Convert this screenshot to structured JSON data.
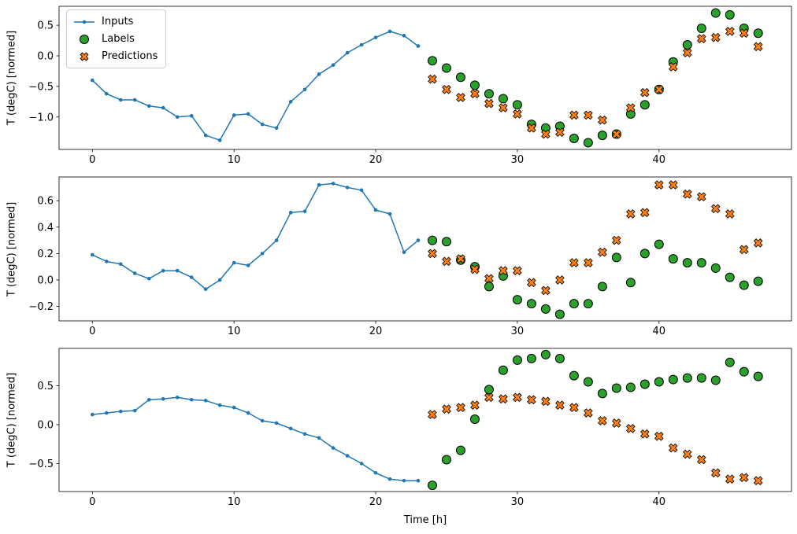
{
  "figure": {
    "xlabel": "Time [h]",
    "ylabel": "T (degC) [normed]",
    "background": "#ffffff",
    "colors": {
      "inputs": "#1f77b4",
      "labels": "#2ca02c",
      "predictions": "#ff7f0e",
      "marker_edge": "#000000",
      "legend_border": "#cccccc"
    },
    "legend": {
      "position": "upper-left",
      "items": [
        "Inputs",
        "Labels",
        "Predictions"
      ]
    }
  },
  "chart_data": [
    {
      "type": "line",
      "title": "",
      "ylabel": "T (degC) [normed]",
      "xlim": [
        -2.35,
        49.35
      ],
      "ylim": [
        -1.53,
        0.81
      ],
      "xticks": [
        0,
        10,
        20,
        30,
        40
      ],
      "yticks": [
        0.5,
        0.0,
        -0.5,
        -1.0
      ],
      "grid": false,
      "series": [
        {
          "name": "Inputs",
          "type": "line",
          "marker": "dot",
          "color": "#1f77b4",
          "x": [
            0,
            1,
            2,
            3,
            4,
            5,
            6,
            7,
            8,
            9,
            10,
            11,
            12,
            13,
            14,
            15,
            16,
            17,
            18,
            19,
            20,
            21,
            22,
            23
          ],
          "y": [
            -0.4,
            -0.62,
            -0.72,
            -0.72,
            -0.82,
            -0.85,
            -1.0,
            -0.98,
            -1.3,
            -1.38,
            -0.97,
            -0.95,
            -1.12,
            -1.18,
            -0.75,
            -0.55,
            -0.3,
            -0.15,
            0.05,
            0.18,
            0.3,
            0.4,
            0.33,
            0.16
          ]
        },
        {
          "name": "Labels",
          "type": "scatter",
          "marker": "circle",
          "color": "#2ca02c",
          "edge_color": "#000000",
          "x": [
            24,
            25,
            26,
            27,
            28,
            29,
            30,
            31,
            32,
            33,
            34,
            35,
            36,
            37,
            38,
            39,
            40,
            41,
            42,
            43,
            44,
            45,
            46,
            47
          ],
          "y": [
            -0.08,
            -0.2,
            -0.35,
            -0.48,
            -0.62,
            -0.7,
            -0.8,
            -1.12,
            -1.18,
            -1.15,
            -1.35,
            -1.42,
            -1.3,
            -1.28,
            -0.95,
            -0.8,
            -0.55,
            -0.1,
            0.18,
            0.45,
            0.7,
            0.67,
            0.45,
            0.37
          ]
        },
        {
          "name": "Predictions",
          "type": "scatter",
          "marker": "X",
          "color": "#ff7f0e",
          "edge_color": "#000000",
          "x": [
            24,
            25,
            26,
            27,
            28,
            29,
            30,
            31,
            32,
            33,
            34,
            35,
            36,
            37,
            38,
            39,
            40,
            41,
            42,
            43,
            44,
            45,
            46,
            47
          ],
          "y": [
            -0.38,
            -0.55,
            -0.68,
            -0.62,
            -0.78,
            -0.85,
            -0.95,
            -1.18,
            -1.28,
            -1.25,
            -0.97,
            -0.97,
            -1.05,
            -1.28,
            -0.85,
            -0.6,
            -0.55,
            -0.18,
            0.05,
            0.28,
            0.3,
            0.4,
            0.37,
            0.15
          ]
        }
      ]
    },
    {
      "type": "line",
      "title": "",
      "ylabel": "T (degC) [normed]",
      "xlim": [
        -2.35,
        49.35
      ],
      "ylim": [
        -0.31,
        0.78
      ],
      "xticks": [
        0,
        10,
        20,
        30,
        40
      ],
      "yticks": [
        0.6,
        0.4,
        0.2,
        0.0,
        -0.2
      ],
      "grid": false,
      "series": [
        {
          "name": "Inputs",
          "type": "line",
          "marker": "dot",
          "color": "#1f77b4",
          "x": [
            0,
            1,
            2,
            3,
            4,
            5,
            6,
            7,
            8,
            9,
            10,
            11,
            12,
            13,
            14,
            15,
            16,
            17,
            18,
            19,
            20,
            21,
            22,
            23
          ],
          "y": [
            0.19,
            0.14,
            0.12,
            0.05,
            0.01,
            0.07,
            0.07,
            0.02,
            -0.07,
            0.0,
            0.13,
            0.11,
            0.2,
            0.3,
            0.51,
            0.52,
            0.72,
            0.73,
            0.7,
            0.68,
            0.53,
            0.5,
            0.21,
            0.3
          ]
        },
        {
          "name": "Labels",
          "type": "scatter",
          "marker": "circle",
          "color": "#2ca02c",
          "edge_color": "#000000",
          "x": [
            24,
            25,
            26,
            27,
            28,
            29,
            30,
            31,
            32,
            33,
            34,
            35,
            36,
            37,
            38,
            39,
            40,
            41,
            42,
            43,
            44,
            45,
            46,
            47
          ],
          "y": [
            0.3,
            0.29,
            0.15,
            0.1,
            -0.05,
            0.03,
            -0.15,
            -0.18,
            -0.22,
            -0.26,
            -0.18,
            -0.18,
            -0.05,
            0.17,
            -0.02,
            0.2,
            0.27,
            0.16,
            0.13,
            0.13,
            0.09,
            0.02,
            -0.04,
            -0.01
          ]
        },
        {
          "name": "Predictions",
          "type": "scatter",
          "marker": "X",
          "color": "#ff7f0e",
          "edge_color": "#000000",
          "x": [
            24,
            25,
            26,
            27,
            28,
            29,
            30,
            31,
            32,
            33,
            34,
            35,
            36,
            37,
            38,
            39,
            40,
            41,
            42,
            43,
            44,
            45,
            46,
            47
          ],
          "y": [
            0.2,
            0.14,
            0.16,
            0.08,
            0.01,
            0.07,
            0.07,
            -0.02,
            -0.08,
            0.0,
            0.13,
            0.13,
            0.21,
            0.3,
            0.5,
            0.51,
            0.72,
            0.72,
            0.65,
            0.63,
            0.54,
            0.5,
            0.23,
            0.28
          ]
        }
      ]
    },
    {
      "type": "line",
      "title": "",
      "ylabel": "T (degC) [normed]",
      "xlabel": "Time [h]",
      "xlim": [
        -2.35,
        49.35
      ],
      "ylim": [
        -0.86,
        0.98
      ],
      "xticks": [
        0,
        10,
        20,
        30,
        40
      ],
      "yticks": [
        0.5,
        0.0,
        -0.5
      ],
      "grid": false,
      "series": [
        {
          "name": "Inputs",
          "type": "line",
          "marker": "dot",
          "color": "#1f77b4",
          "x": [
            0,
            1,
            2,
            3,
            4,
            5,
            6,
            7,
            8,
            9,
            10,
            11,
            12,
            13,
            14,
            15,
            16,
            17,
            18,
            19,
            20,
            21,
            22,
            23
          ],
          "y": [
            0.13,
            0.15,
            0.17,
            0.18,
            0.32,
            0.33,
            0.35,
            0.32,
            0.31,
            0.25,
            0.22,
            0.15,
            0.05,
            0.02,
            -0.05,
            -0.12,
            -0.17,
            -0.3,
            -0.4,
            -0.5,
            -0.62,
            -0.7,
            -0.72,
            -0.72
          ]
        },
        {
          "name": "Labels",
          "type": "scatter",
          "marker": "circle",
          "color": "#2ca02c",
          "edge_color": "#000000",
          "x": [
            24,
            25,
            26,
            27,
            28,
            29,
            30,
            31,
            32,
            33,
            34,
            35,
            36,
            37,
            38,
            39,
            40,
            41,
            42,
            43,
            44,
            45,
            46,
            47
          ],
          "y": [
            -0.78,
            -0.45,
            -0.33,
            0.07,
            0.45,
            0.7,
            0.83,
            0.85,
            0.9,
            0.85,
            0.63,
            0.55,
            0.4,
            0.47,
            0.48,
            0.52,
            0.55,
            0.58,
            0.6,
            0.6,
            0.57,
            0.8,
            0.68,
            0.62
          ]
        },
        {
          "name": "Predictions",
          "type": "scatter",
          "marker": "X",
          "color": "#ff7f0e",
          "edge_color": "#000000",
          "x": [
            24,
            25,
            26,
            27,
            28,
            29,
            30,
            31,
            32,
            33,
            34,
            35,
            36,
            37,
            38,
            39,
            40,
            41,
            42,
            43,
            44,
            45,
            46,
            47
          ],
          "y": [
            0.13,
            0.2,
            0.22,
            0.25,
            0.35,
            0.33,
            0.35,
            0.32,
            0.3,
            0.25,
            0.22,
            0.15,
            0.05,
            0.02,
            -0.05,
            -0.12,
            -0.15,
            -0.3,
            -0.38,
            -0.45,
            -0.62,
            -0.7,
            -0.68,
            -0.72
          ]
        }
      ]
    }
  ]
}
